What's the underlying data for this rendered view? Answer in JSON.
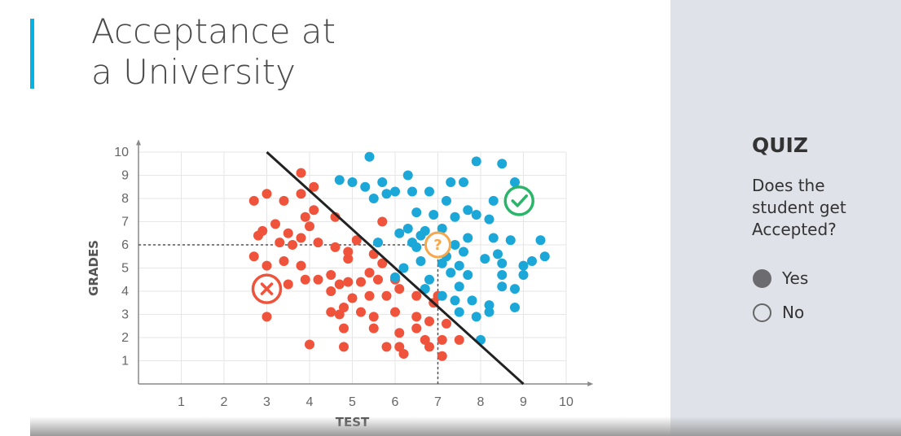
{
  "slide": {
    "title_lines": [
      "Acceptance at",
      "a University"
    ]
  },
  "quiz": {
    "label": "QUIZ",
    "question": "Does the student get Accepted?",
    "options": [
      {
        "label": "Yes",
        "selected": true
      },
      {
        "label": "No",
        "selected": false
      }
    ]
  },
  "colors": {
    "accent": "#02b3e4",
    "rejected": "#f0533b",
    "accepted": "#1ba8d8",
    "question": "#f5a74b",
    "check": "#2bb56a",
    "boundary": "#222222"
  },
  "icons": {
    "student_marker": "question-mark-circle-icon",
    "accepted_marker": "check-circle-icon",
    "rejected_marker": "x-circle-icon"
  },
  "chart_data": {
    "type": "scatter",
    "xlabel": "TEST",
    "ylabel": "GRADES",
    "xlim": [
      0,
      10
    ],
    "ylim": [
      0,
      10
    ],
    "xticks": [
      "1",
      "2",
      "3",
      "4",
      "5",
      "6",
      "7",
      "8",
      "9",
      "10"
    ],
    "yticks": [
      "1",
      "2",
      "3",
      "4",
      "5",
      "6",
      "7",
      "8",
      "9",
      "10"
    ],
    "grid": true,
    "boundary_line": {
      "x": [
        3,
        9
      ],
      "y": [
        10,
        0
      ]
    },
    "query_point": {
      "x": 7,
      "y": 6,
      "marker": "?"
    },
    "markers": [
      {
        "kind": "check",
        "x": 8.9,
        "y": 7.9
      },
      {
        "kind": "cross",
        "x": 3,
        "y": 4.1
      }
    ],
    "series": [
      {
        "values": [
          [
            2.7,
            7.9
          ],
          [
            3,
            8.2
          ],
          [
            3.4,
            7.9
          ],
          [
            3.8,
            8.2
          ],
          [
            3.8,
            9.1
          ],
          [
            4.1,
            8.5
          ],
          [
            4.1,
            7.5
          ],
          [
            4.6,
            7.2
          ],
          [
            2.9,
            6.6
          ],
          [
            3.2,
            6.9
          ],
          [
            3.5,
            6.5
          ],
          [
            3.9,
            7.2
          ],
          [
            4,
            6.8
          ],
          [
            5.7,
            7
          ],
          [
            2.8,
            6.4
          ],
          [
            3.3,
            6.1
          ],
          [
            3.6,
            6
          ],
          [
            3.8,
            6.3
          ],
          [
            4.2,
            6.1
          ],
          [
            4.6,
            5.9
          ],
          [
            4.9,
            5.7
          ],
          [
            5.1,
            6.2
          ],
          [
            5.5,
            5.6
          ],
          [
            2.7,
            5.5
          ],
          [
            3,
            5.1
          ],
          [
            3.4,
            5.3
          ],
          [
            3.8,
            5.1
          ],
          [
            4.5,
            4.7
          ],
          [
            4.9,
            5.4
          ],
          [
            5.4,
            4.8
          ],
          [
            5.7,
            5.2
          ],
          [
            4.2,
            4.5
          ],
          [
            4.5,
            4
          ],
          [
            4.7,
            4.3
          ],
          [
            4.9,
            4.4
          ],
          [
            5.2,
            4.4
          ],
          [
            5.6,
            4.5
          ],
          [
            6,
            4.5
          ],
          [
            3,
            4.2
          ],
          [
            3.5,
            4.3
          ],
          [
            3.9,
            4.5
          ],
          [
            5,
            3.7
          ],
          [
            5.4,
            3.8
          ],
          [
            5.8,
            3.8
          ],
          [
            6.1,
            4.1
          ],
          [
            6.5,
            3.8
          ],
          [
            7,
            3.8
          ],
          [
            6.9,
            3.5
          ],
          [
            4.5,
            3.1
          ],
          [
            4.7,
            3
          ],
          [
            5.2,
            3.1
          ],
          [
            5.5,
            2.9
          ],
          [
            6,
            3.1
          ],
          [
            6.5,
            2.9
          ],
          [
            4.8,
            3.3
          ],
          [
            4.8,
            2.4
          ],
          [
            5.5,
            2.4
          ],
          [
            6.1,
            2.2
          ],
          [
            6.5,
            2.4
          ],
          [
            6.8,
            2.7
          ],
          [
            7.2,
            2.6
          ],
          [
            6.8,
            1.6
          ],
          [
            7.1,
            1.9
          ],
          [
            6.1,
            1.6
          ],
          [
            5.8,
            1.6
          ],
          [
            4.8,
            1.6
          ],
          [
            4,
            1.7
          ],
          [
            6.2,
            1.3
          ],
          [
            7.1,
            1.2
          ],
          [
            7.5,
            1.9
          ],
          [
            6.7,
            1.9
          ],
          [
            3,
            2.9
          ]
        ]
      },
      {
        "values": [
          [
            5.4,
            9.8
          ],
          [
            4.7,
            8.8
          ],
          [
            5,
            8.7
          ],
          [
            5.3,
            8.5
          ],
          [
            5.7,
            8.7
          ],
          [
            6,
            8.3
          ],
          [
            6.3,
            9
          ],
          [
            7.3,
            8.7
          ],
          [
            7.6,
            8.7
          ],
          [
            7.9,
            9.6
          ],
          [
            8.5,
            9.5
          ],
          [
            8.8,
            8.7
          ],
          [
            5.5,
            8
          ],
          [
            5.8,
            8.2
          ],
          [
            6.4,
            8.3
          ],
          [
            6.8,
            8.3
          ],
          [
            7.2,
            7.9
          ],
          [
            7.7,
            7.5
          ],
          [
            8.3,
            7.9
          ],
          [
            9,
            7.6
          ],
          [
            6.5,
            7.4
          ],
          [
            6.9,
            7.3
          ],
          [
            7.4,
            7.2
          ],
          [
            7.9,
            7.3
          ],
          [
            8.2,
            7.1
          ],
          [
            6.3,
            6.7
          ],
          [
            6.7,
            6.6
          ],
          [
            7.1,
            6.7
          ],
          [
            7.7,
            6.3
          ],
          [
            8.3,
            6.3
          ],
          [
            8.7,
            6.2
          ],
          [
            9.4,
            6.2
          ],
          [
            6.1,
            6.5
          ],
          [
            6.4,
            6.1
          ],
          [
            6.6,
            6.4
          ],
          [
            7.4,
            6
          ],
          [
            5.6,
            6.1
          ],
          [
            6.5,
            5.9
          ],
          [
            6.9,
            5.8
          ],
          [
            7.2,
            5.5
          ],
          [
            7.6,
            5.7
          ],
          [
            8.4,
            5.6
          ],
          [
            9.2,
            5.3
          ],
          [
            9.5,
            5.5
          ],
          [
            6.6,
            5.3
          ],
          [
            7.1,
            5.2
          ],
          [
            7.5,
            5.1
          ],
          [
            8.1,
            5.4
          ],
          [
            8.5,
            5.2
          ],
          [
            9,
            5.1
          ],
          [
            6.2,
            5
          ],
          [
            7.3,
            4.8
          ],
          [
            7.7,
            4.7
          ],
          [
            8.5,
            4.7
          ],
          [
            9,
            4.7
          ],
          [
            6,
            4.6
          ],
          [
            6.8,
            4.5
          ],
          [
            7.5,
            4.2
          ],
          [
            8.5,
            4.2
          ],
          [
            8.8,
            4.1
          ],
          [
            6.7,
            4.1
          ],
          [
            7.1,
            3.8
          ],
          [
            7.4,
            3.6
          ],
          [
            7.8,
            3.6
          ],
          [
            8.2,
            3.4
          ],
          [
            8.8,
            3.3
          ],
          [
            8.2,
            3.1
          ],
          [
            7.5,
            3.1
          ],
          [
            7.9,
            2.9
          ],
          [
            8,
            1.9
          ]
        ]
      }
    ]
  }
}
